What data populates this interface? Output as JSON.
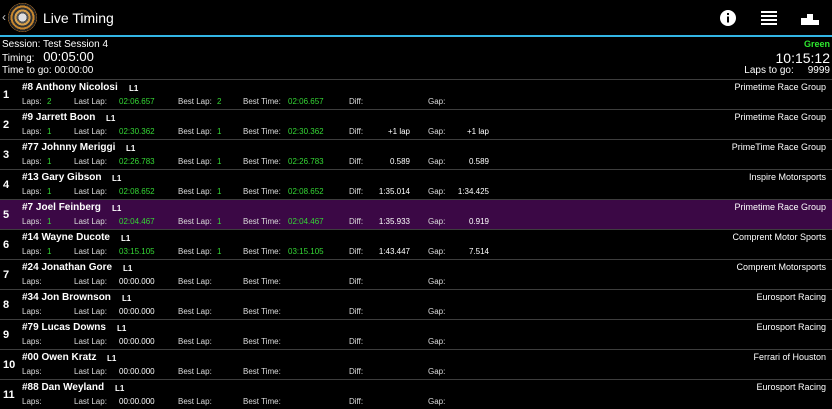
{
  "app": {
    "title": "Live Timing",
    "back_glyph": "‹",
    "icons": [
      "info-icon",
      "list-icon",
      "podium-icon"
    ]
  },
  "session": {
    "label": "Session:",
    "name": "Test Session 4",
    "timing_label": "Timing:",
    "timing": "00:05:00",
    "ttg_label": "Time to go:",
    "time_to_go": "00:00:00",
    "flag": "Green",
    "clock": "10:15:12",
    "laps_to_go_label": "Laps to go:",
    "laps_to_go": "9999"
  },
  "labels": {
    "laps": "Laps:",
    "last_lap": "Last Lap:",
    "best_lap": "Best Lap:",
    "best_time": "Best Time:",
    "diff": "Diff:",
    "gap": "Gap:"
  },
  "colors": {
    "accent": "#33b5e5",
    "flag_green": "#2ee62e",
    "time_green": "#35d835",
    "highlight_row": "#3b0845"
  },
  "rows": [
    {
      "pos": "1",
      "driver": "#8 Anthony Nicolosi",
      "cls": "L1",
      "team": "Primetime Race Group",
      "laps": "2",
      "last_lap": "02:06.657",
      "best_lap": "2",
      "best_time": "02:06.657",
      "diff": "",
      "gap": "",
      "green": true
    },
    {
      "pos": "2",
      "driver": "#9 Jarrett Boon",
      "cls": "L1",
      "team": "Primetime Race Group",
      "laps": "1",
      "last_lap": "02:30.362",
      "best_lap": "1",
      "best_time": "02:30.362",
      "diff": "+1 lap",
      "gap": "+1 lap",
      "green": true
    },
    {
      "pos": "3",
      "driver": "#77 Johnny Meriggi",
      "cls": "L1",
      "team": "PrimeTime Race Group",
      "laps": "1",
      "last_lap": "02:26.783",
      "best_lap": "1",
      "best_time": "02:26.783",
      "diff": "0.589",
      "gap": "0.589",
      "green": true
    },
    {
      "pos": "4",
      "driver": "#13 Gary Gibson",
      "cls": "L1",
      "team": "Inspire Motorsports",
      "laps": "1",
      "last_lap": "02:08.652",
      "best_lap": "1",
      "best_time": "02:08.652",
      "diff": "1:35.014",
      "gap": "1:34.425",
      "green": true
    },
    {
      "pos": "5",
      "driver": "#7 Joel Feinberg",
      "cls": "L1",
      "team": "Primetime Race Group",
      "laps": "1",
      "last_lap": "02:04.467",
      "best_lap": "1",
      "best_time": "02:04.467",
      "diff": "1:35.933",
      "gap": "0.919",
      "green": true,
      "highlight": true
    },
    {
      "pos": "6",
      "driver": "#14 Wayne Ducote",
      "cls": "L1",
      "team": "Comprent Motor Sports",
      "laps": "1",
      "last_lap": "03:15.105",
      "best_lap": "1",
      "best_time": "03:15.105",
      "diff": "1:43.447",
      "gap": "7.514",
      "green": true
    },
    {
      "pos": "7",
      "driver": "#24 Jonathan Gore",
      "cls": "L1",
      "team": "Comprent Motorsports",
      "laps": "",
      "last_lap": "00:00.000",
      "best_lap": "",
      "best_time": "",
      "diff": "",
      "gap": "",
      "green": false
    },
    {
      "pos": "8",
      "driver": "#34 Jon Brownson",
      "cls": "L1",
      "team": "Eurosport Racing",
      "laps": "",
      "last_lap": "00:00.000",
      "best_lap": "",
      "best_time": "",
      "diff": "",
      "gap": "",
      "green": false
    },
    {
      "pos": "9",
      "driver": "#79 Lucas Downs",
      "cls": "L1",
      "team": "Eurosport Racing",
      "laps": "",
      "last_lap": "00:00.000",
      "best_lap": "",
      "best_time": "",
      "diff": "",
      "gap": "",
      "green": false
    },
    {
      "pos": "10",
      "driver": "#00 Owen Kratz",
      "cls": "L1",
      "team": "Ferrari of Houston",
      "laps": "",
      "last_lap": "00:00.000",
      "best_lap": "",
      "best_time": "",
      "diff": "",
      "gap": "",
      "green": false
    },
    {
      "pos": "11",
      "driver": "#88 Dan Weyland",
      "cls": "L1",
      "team": "Eurosport Racing",
      "laps": "",
      "last_lap": "00:00.000",
      "best_lap": "",
      "best_time": "",
      "diff": "",
      "gap": "",
      "green": false
    }
  ]
}
